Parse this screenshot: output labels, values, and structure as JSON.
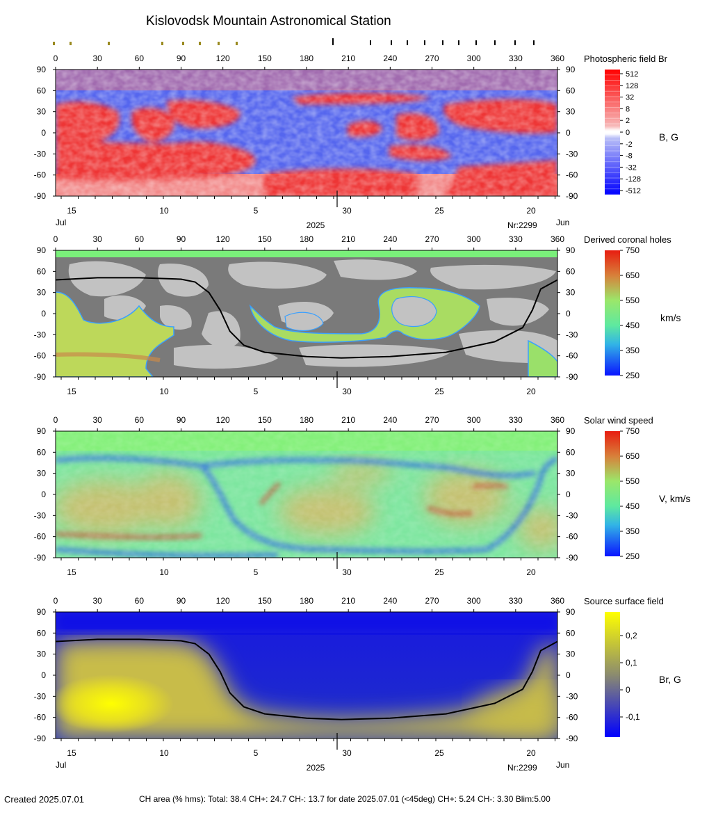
{
  "title": "Kislovodsk Mountain Astronomical Station",
  "lon_ticks": [
    "0",
    "30",
    "60",
    "90",
    "120",
    "150",
    "180",
    "210",
    "240",
    "270",
    "300",
    "330",
    "360"
  ],
  "lat_ticks": [
    "90",
    "60",
    "30",
    "0",
    "-30",
    "-60",
    "-90"
  ],
  "date_ticks": [
    "15",
    "10",
    "5",
    "30",
    "25",
    "20"
  ],
  "month_left": "Jul",
  "month_right": "Jun",
  "year": "2025",
  "rotation": "Nr:2299",
  "panels": [
    {
      "label": "Photospheric field Br",
      "unit": "B, G",
      "scale": "log",
      "colorbar_ticks": [
        "512",
        "128",
        "32",
        "8",
        "2",
        "0",
        "-2",
        "-8",
        "-32",
        "-128",
        "-512"
      ]
    },
    {
      "label": "Derived coronal holes",
      "unit": "km/s",
      "scale": "speed",
      "colorbar_ticks": [
        "750",
        "650",
        "550",
        "450",
        "350",
        "250"
      ]
    },
    {
      "label": "Solar wind speed",
      "unit": "V, km/s",
      "scale": "speed",
      "colorbar_ticks": [
        "750",
        "650",
        "550",
        "450",
        "350",
        "250"
      ]
    },
    {
      "label": "Source surface field",
      "unit": "Br, G",
      "scale": "field",
      "colorbar_ticks": [
        "0,2",
        "0,1",
        "0",
        "-0,1"
      ]
    }
  ],
  "colors": {
    "positive": "#ef3b3b",
    "negative": "#3344e6",
    "coronal_hole_gray_dark": "#7a7a7a",
    "coronal_hole_gray_light": "#c2c2c2",
    "wind_green": "#8cf07a",
    "ss_blue": "#1414e0",
    "ss_yellow": "#f0f000"
  },
  "chart_data": {
    "type": "heatmap",
    "x_range": [
      0,
      360
    ],
    "y_range": [
      -90,
      90
    ],
    "neutral_line": [
      {
        "lon": 0,
        "lat": 48
      },
      {
        "lon": 30,
        "lat": 51
      },
      {
        "lon": 60,
        "lat": 51
      },
      {
        "lon": 90,
        "lat": 49
      },
      {
        "lon": 100,
        "lat": 45
      },
      {
        "lon": 110,
        "lat": 30
      },
      {
        "lon": 118,
        "lat": 5
      },
      {
        "lon": 125,
        "lat": -25
      },
      {
        "lon": 135,
        "lat": -45
      },
      {
        "lon": 150,
        "lat": -55
      },
      {
        "lon": 180,
        "lat": -61
      },
      {
        "lon": 205,
        "lat": -63
      },
      {
        "lon": 240,
        "lat": -61
      },
      {
        "lon": 280,
        "lat": -55
      },
      {
        "lon": 315,
        "lat": -40
      },
      {
        "lon": 335,
        "lat": -20
      },
      {
        "lon": 342,
        "lat": 5
      },
      {
        "lon": 348,
        "lat": 35
      },
      {
        "lon": 360,
        "lat": 48
      }
    ]
  },
  "footer": {
    "created": "Created  2025.07.01",
    "ch_area": "CH area (% hms): Total: 38.4 CH+: 24.7   CH-: 13.7 for date 2025.07.01 (<45deg) CH+: 5.24    CH-: 3.30 Blim:5.00"
  }
}
